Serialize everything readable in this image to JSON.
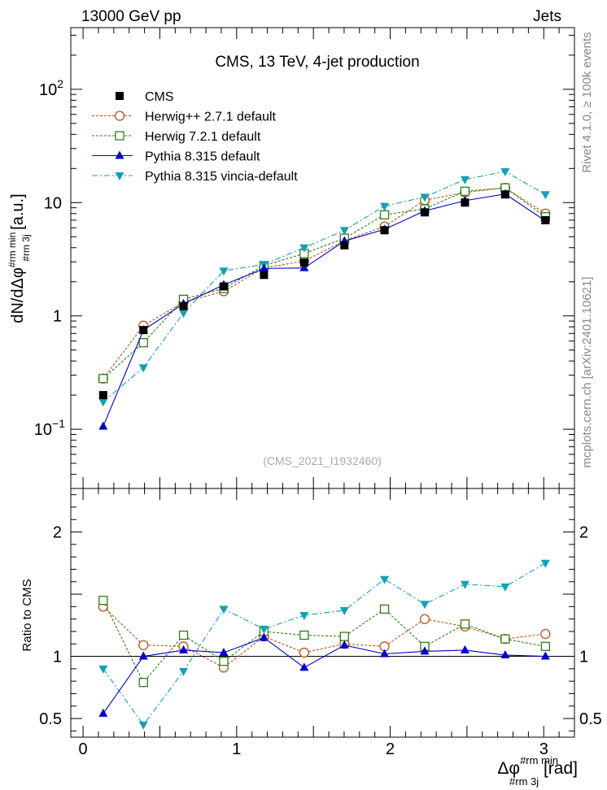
{
  "header": {
    "left": "13000 GeV pp",
    "right": "Jets"
  },
  "side_labels": {
    "rivet": "Rivet 4.1.0, ≥ 100k events",
    "mcplots": "mcplots.cern.ch [arXiv:2401.10621]"
  },
  "chart_data": [
    {
      "panel": "main",
      "type": "line",
      "title": "CMS, 13 TeV, 4-jet production",
      "analysis_tag": "(CMS_2021_I1932460)",
      "ylabel": "dN/dΔφ",
      "ylabel_sup": "#rm min",
      "ylabel_sub": "#rm 3j",
      "ylabel_unit": " [a.u.]",
      "yscale": "log",
      "xlim": [
        -0.08,
        3.2
      ],
      "ylim": [
        0.03,
        350
      ],
      "yticks": [
        {
          "value": 0.1,
          "base": "10",
          "exp": "−1"
        },
        {
          "value": 1,
          "base": "1",
          "exp": ""
        },
        {
          "value": 10,
          "base": "10",
          "exp": ""
        },
        {
          "value": 100,
          "base": "10",
          "exp": "2"
        }
      ],
      "x": [
        0.131,
        0.393,
        0.654,
        0.916,
        1.178,
        1.44,
        1.702,
        1.963,
        2.225,
        2.487,
        2.749,
        3.011
      ],
      "series": [
        {
          "name": "CMS",
          "color": "#000000",
          "marker": "square-filled",
          "line": "none",
          "values": [
            0.2,
            0.75,
            1.22,
            1.82,
            2.3,
            2.95,
            4.2,
            5.7,
            8.2,
            10.0,
            11.8,
            7.0
          ]
        },
        {
          "name": "Herwig++ 2.7.1 default",
          "color": "#b8541a",
          "marker": "circle-open",
          "line": "dotted",
          "values": [
            0.28,
            0.82,
            1.32,
            1.65,
            2.65,
            3.05,
            4.6,
            6.15,
            10.5,
            12.3,
            13.5,
            8.0
          ]
        },
        {
          "name": "Herwig 7.2.1 default",
          "color": "#2e7d14",
          "marker": "square-open",
          "line": "dotted",
          "values": [
            0.28,
            0.58,
            1.4,
            1.75,
            2.78,
            3.55,
            4.85,
            7.8,
            8.8,
            12.6,
            13.5,
            7.5
          ]
        },
        {
          "name": "Pythia 8.315 default",
          "color": "#0000cc",
          "marker": "triangle-up-filled",
          "line": "solid",
          "values": [
            0.106,
            0.75,
            1.28,
            1.88,
            2.62,
            2.65,
            4.58,
            5.8,
            8.45,
            10.4,
            11.9,
            6.9
          ]
        },
        {
          "name": "Pythia 8.315 vincia-default",
          "color": "#14a0b4",
          "marker": "triangle-down-filled",
          "line": "dashdot",
          "values": [
            0.175,
            0.35,
            1.06,
            2.5,
            2.85,
            4.0,
            5.7,
            9.3,
            11.2,
            16.0,
            18.8,
            11.8
          ]
        }
      ]
    },
    {
      "panel": "ratio",
      "type": "line",
      "ylabel": "Ratio to CMS",
      "xlabel": "Δφ",
      "xlabel_sup": "#rm min",
      "xlabel_sub": "#rm 3j",
      "xlabel_unit": " [rad]",
      "xlim": [
        -0.08,
        3.2
      ],
      "ylim": [
        0.35,
        2.35
      ],
      "xticks": [
        0,
        1,
        2,
        3
      ],
      "yticks": [
        0.5,
        1,
        2
      ],
      "x": [
        0.131,
        0.393,
        0.654,
        0.916,
        1.178,
        1.44,
        1.702,
        1.963,
        2.225,
        2.487,
        2.749,
        3.011
      ],
      "series": [
        {
          "name": "Herwig++ 2.7.1 default",
          "color": "#b8541a",
          "marker": "circle-open",
          "line": "dotted",
          "values": [
            1.4,
            1.09,
            1.08,
            0.91,
            1.16,
            1.03,
            1.1,
            1.08,
            1.3,
            1.24,
            1.14,
            1.18
          ]
        },
        {
          "name": "Herwig 7.2.1 default",
          "color": "#2e7d14",
          "marker": "square-open",
          "line": "dotted",
          "values": [
            1.45,
            0.79,
            1.17,
            0.96,
            1.2,
            1.17,
            1.16,
            1.38,
            1.08,
            1.26,
            1.14,
            1.08
          ]
        },
        {
          "name": "Pythia 8.315 default",
          "color": "#0000cc",
          "marker": "triangle-up-filled",
          "line": "solid",
          "values": [
            0.54,
            1.0,
            1.05,
            1.03,
            1.15,
            0.91,
            1.09,
            1.02,
            1.04,
            1.05,
            1.01,
            1.0
          ]
        },
        {
          "name": "Pythia 8.315 vincia-default",
          "color": "#14a0b4",
          "marker": "triangle-down-filled",
          "line": "dashdot",
          "values": [
            0.9,
            0.45,
            0.88,
            1.38,
            1.22,
            1.33,
            1.37,
            1.62,
            1.42,
            1.58,
            1.56,
            1.75
          ]
        }
      ]
    }
  ]
}
